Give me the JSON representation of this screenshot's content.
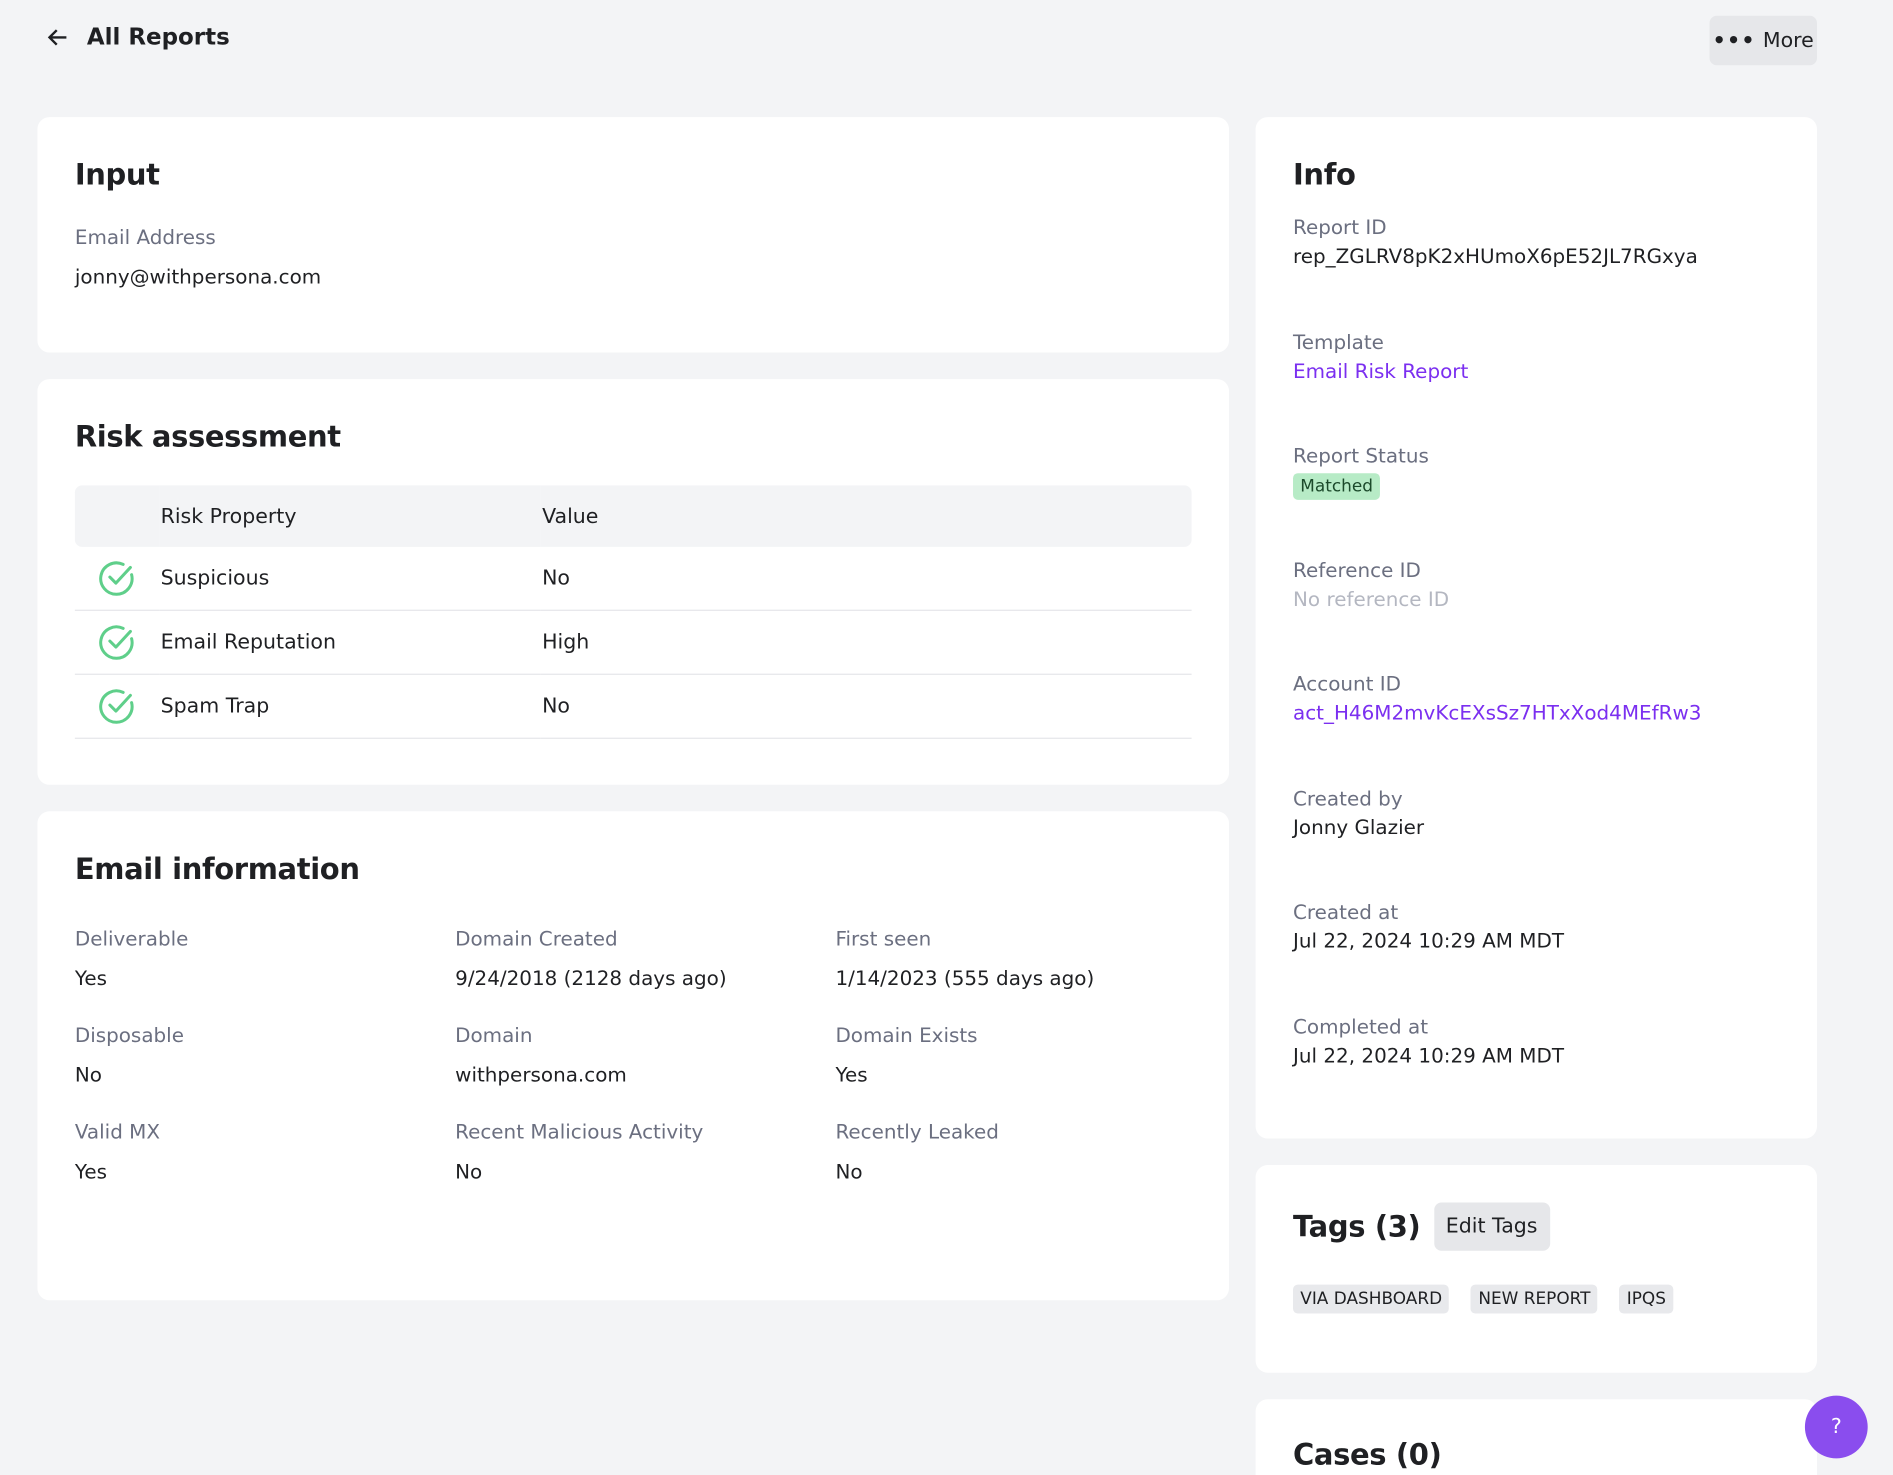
{
  "header": {
    "back_label": "All Reports",
    "more_label": "More"
  },
  "input": {
    "title": "Input",
    "label": "Email Address",
    "value": "jonny@withpersona.com"
  },
  "risk": {
    "title": "Risk assessment",
    "columns": [
      "Risk Property",
      "Value"
    ],
    "rows": [
      [
        "Suspicious",
        "No"
      ],
      [
        "Email Reputation",
        "High"
      ],
      [
        "Spam Trap",
        "No"
      ]
    ]
  },
  "email_info": {
    "title": "Email information",
    "fields": [
      {
        "label": "Deliverable",
        "value": "Yes"
      },
      {
        "label": "Domain Created",
        "value": "9/24/2018 (2128 days ago)"
      },
      {
        "label": "First seen",
        "value": "1/14/2023 (555 days ago)"
      },
      {
        "label": "Disposable",
        "value": "No"
      },
      {
        "label": "Domain",
        "value": "withpersona.com"
      },
      {
        "label": "Domain Exists",
        "value": "Yes"
      },
      {
        "label": "Valid MX",
        "value": "Yes"
      },
      {
        "label": "Recent Malicious Activity",
        "value": "No"
      },
      {
        "label": "Recently Leaked",
        "value": "No"
      }
    ]
  },
  "info": {
    "title": "Info",
    "fields": [
      {
        "label": "Report ID",
        "value": "rep_ZGLRV8pK2xHUmoX6pE52JL7RGxya"
      },
      {
        "label": "Template",
        "value": "Email Risk Report"
      },
      {
        "label": "Report Status",
        "value": "Matched"
      },
      {
        "label": "Reference ID",
        "value": "No reference ID"
      },
      {
        "label": "Account ID",
        "value": "act_H46M2mvKcEXsSz7HTxXod4MEfRw3"
      },
      {
        "label": "Created by",
        "value": "Jonny Glazier"
      },
      {
        "label": "Created at",
        "value": "Jul 22, 2024 10:29 AM MDT"
      },
      {
        "label": "Completed at",
        "value": "Jul 22, 2024 10:29 AM MDT"
      }
    ]
  },
  "tags": {
    "title": "Tags (3)",
    "edit_label": "Edit Tags",
    "items": [
      "VIA DASHBOARD",
      "NEW REPORT",
      "IPQS"
    ]
  },
  "cases": {
    "title": "Cases (0)"
  },
  "help": {
    "label": "?"
  }
}
